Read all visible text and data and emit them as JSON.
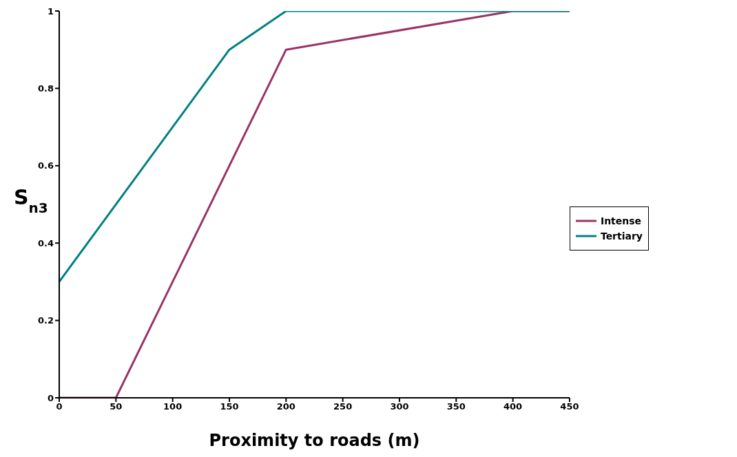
{
  "chart_data": {
    "type": "line",
    "xlabel": "Proximity to roads (m)",
    "ylabel": "S$_{n3}$",
    "series": [
      {
        "name": "Intense",
        "color": "#993366",
        "x": [
          0,
          50,
          200,
          400,
          450
        ],
        "values": [
          0,
          0,
          0.9,
          1,
          1
        ]
      },
      {
        "name": "Tertiary",
        "color": "#008080",
        "x": [
          0,
          150,
          200,
          450
        ],
        "values": [
          0.3,
          0.9,
          1,
          1
        ]
      }
    ],
    "xlim": [
      0,
      450
    ],
    "xticks": [
      0,
      50,
      100,
      150,
      200,
      250,
      300,
      350,
      400,
      450
    ],
    "ylim": [
      0,
      1
    ],
    "yticks": [
      0,
      0.2,
      0.4,
      0.6,
      0.8,
      1
    ],
    "grid": false,
    "legend": "right",
    "marker": "none",
    "line_style": "solid"
  }
}
